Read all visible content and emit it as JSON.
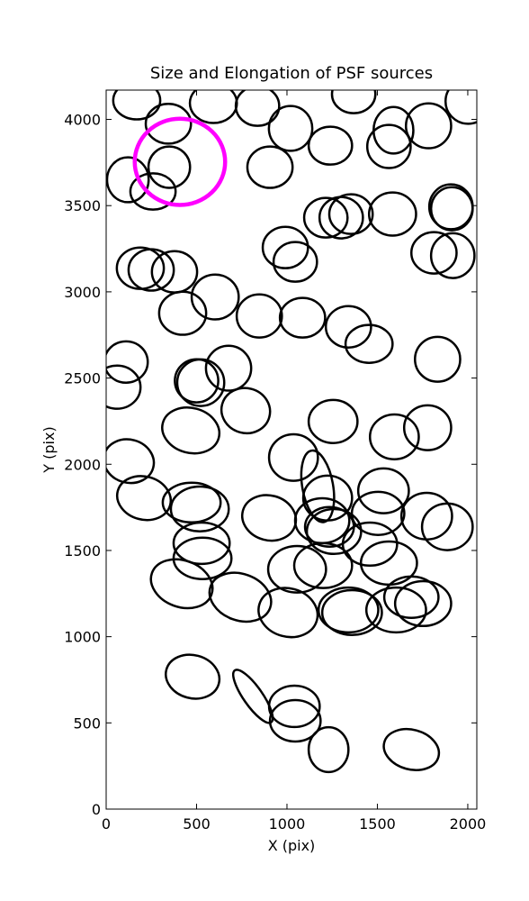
{
  "chart_data": {
    "type": "ellipse",
    "title": "Size and Elongation of PSF sources",
    "xlabel": "X (pix)",
    "ylabel": "Y (pix)",
    "xlim": [
      0,
      2050
    ],
    "ylim": [
      0,
      4170
    ],
    "xticks": [
      0,
      500,
      1000,
      1500,
      2000
    ],
    "yticks": [
      0,
      500,
      1000,
      1500,
      2000,
      2500,
      3000,
      3500,
      4000
    ],
    "series": [
      {
        "color": "#000000",
        "line_width": 2.5,
        "x": [
          169,
          344,
          593,
          837,
          1020,
          1240,
          1369,
          1589,
          1564,
          1783,
          2002,
          120,
          259,
          349,
          906,
          1215,
          1300,
          1354,
          1584,
          1907,
          1912,
          1813,
          1917,
          991,
          1046,
          189,
          249,
          378,
          603,
          423,
          847,
          1086,
          1340,
          1454,
          110,
          60,
          500,
          523,
          677,
          772,
          468,
          1255,
          1833,
          1594,
          1778,
          125,
          209,
          473,
          518,
          901,
          1036,
          1170,
          1225,
          1195,
          1260,
          1235,
          1534,
          1504,
          1773,
          1887,
          528,
          533,
          418,
          742,
          1006,
          1056,
          1200,
          1459,
          1564,
          1340,
          1360,
          1604,
          1688,
          1753,
          478,
          812,
          1041,
          1046,
          1230,
          1688
        ],
        "y": [
          4110,
          3975,
          4094,
          4078,
          3948,
          3848,
          4146,
          3937,
          3843,
          3963,
          4105,
          3650,
          3582,
          3723,
          3723,
          3430,
          3430,
          3451,
          3451,
          3493,
          3482,
          3226,
          3210,
          3257,
          3174,
          3137,
          3127,
          3116,
          2970,
          2876,
          2860,
          2850,
          2797,
          2698,
          2593,
          2447,
          2484,
          2473,
          2557,
          2311,
          2196,
          2248,
          2609,
          2159,
          2212,
          2018,
          1804,
          1778,
          1741,
          1689,
          2039,
          1872,
          1804,
          1673,
          1610,
          1637,
          1846,
          1715,
          1699,
          1637,
          1542,
          1454,
          1307,
          1229,
          1140,
          1391,
          1412,
          1537,
          1427,
          1155,
          1140,
          1155,
          1229,
          1192,
          768,
          654,
          596,
          512,
          345,
          345
        ],
        "width": [
          260,
          250,
          260,
          240,
          240,
          240,
          240,
          220,
          240,
          250,
          250,
          230,
          250,
          230,
          250,
          240,
          240,
          240,
          260,
          240,
          230,
          250,
          240,
          250,
          240,
          260,
          250,
          250,
          260,
          260,
          250,
          250,
          250,
          260,
          240,
          260,
          240,
          260,
          250,
          270,
          320,
          270,
          250,
          270,
          260,
          280,
          300,
          320,
          320,
          300,
          270,
          170,
          270,
          300,
          300,
          270,
          280,
          290,
          280,
          280,
          310,
          320,
          350,
          350,
          330,
          320,
          320,
          300,
          310,
          330,
          330,
          330,
          300,
          310,
          300,
          350,
          280,
          280,
          220,
          310
        ],
        "height": [
          220,
          230,
          230,
          230,
          260,
          220,
          220,
          270,
          250,
          260,
          260,
          260,
          210,
          240,
          240,
          230,
          240,
          230,
          250,
          260,
          250,
          240,
          260,
          240,
          230,
          240,
          240,
          240,
          260,
          250,
          250,
          230,
          240,
          220,
          240,
          250,
          250,
          270,
          260,
          260,
          260,
          250,
          260,
          260,
          260,
          250,
          250,
          230,
          260,
          260,
          270,
          420,
          260,
          260,
          260,
          230,
          260,
          250,
          270,
          270,
          240,
          240,
          270,
          270,
          280,
          270,
          260,
          250,
          250,
          260,
          260,
          260,
          240,
          260,
          250,
          110,
          240,
          240,
          260,
          230
        ],
        "angle": [
          0,
          0,
          0,
          0,
          0,
          0,
          0,
          0,
          0,
          0,
          0,
          0,
          0,
          0,
          0,
          0,
          0,
          0,
          0,
          0,
          0,
          0,
          0,
          0,
          0,
          0,
          0,
          0,
          0,
          0,
          0,
          0,
          0,
          0,
          0,
          0,
          0,
          0,
          0,
          -15,
          -15,
          0,
          0,
          0,
          0,
          -15,
          -15,
          0,
          0,
          -15,
          0,
          10,
          0,
          0,
          0,
          0,
          0,
          0,
          0,
          0,
          0,
          0,
          -20,
          -20,
          -15,
          0,
          0,
          0,
          0,
          0,
          0,
          0,
          0,
          0,
          -15,
          -55,
          0,
          0,
          0,
          -15
        ]
      },
      {
        "color": "#ff00ff",
        "line_width": 4.5,
        "x": [
          408
        ],
        "y": [
          3754
        ],
        "width": [
          500
        ],
        "height": [
          500
        ],
        "angle": [
          0
        ]
      }
    ]
  }
}
